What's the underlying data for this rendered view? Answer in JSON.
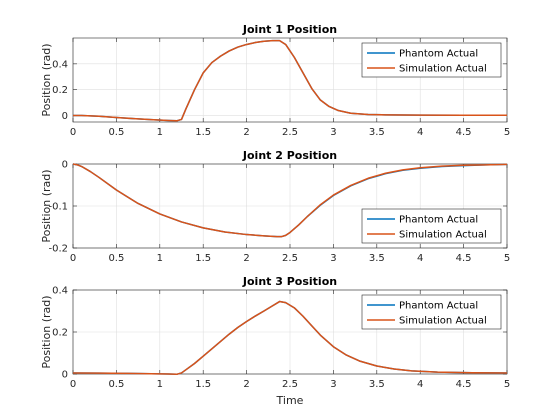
{
  "figure": {
    "background": "#ffffff"
  },
  "chart_data": [
    {
      "type": "line",
      "title": "Joint 1 Position",
      "xlabel": "",
      "ylabel": "Position (rad)",
      "xlim": [
        0,
        5
      ],
      "ylim": [
        -0.05,
        0.6
      ],
      "xticks": [
        0,
        0.5,
        1,
        1.5,
        2,
        2.5,
        3,
        3.5,
        4,
        4.5,
        5
      ],
      "xtick_labels": [
        "0",
        "0.5",
        "1",
        "1.5",
        "2",
        "2.5",
        "3",
        "3.5",
        "4",
        "4.5",
        "5"
      ],
      "yticks": [
        0,
        0.2,
        0.4
      ],
      "ytick_labels": [
        "0",
        "0.2",
        "0.4"
      ],
      "grid": true,
      "legend_position": "top-right",
      "series": [
        {
          "name": "Phantom Actual",
          "color": "#0072BD",
          "x": [
            0,
            0.1,
            0.3,
            0.5,
            0.7,
            0.9,
            1.1,
            1.2,
            1.25,
            1.3,
            1.4,
            1.5,
            1.6,
            1.7,
            1.8,
            1.9,
            2.0,
            2.1,
            2.2,
            2.3,
            2.38,
            2.45,
            2.55,
            2.65,
            2.75,
            2.85,
            2.95,
            3.05,
            3.2,
            3.4,
            3.6,
            3.8,
            4.0,
            4.5,
            5.0
          ],
          "y": [
            0.0,
            0.0,
            -0.006,
            -0.015,
            -0.024,
            -0.032,
            -0.038,
            -0.04,
            -0.03,
            0.05,
            0.2,
            0.33,
            0.41,
            0.46,
            0.5,
            0.53,
            0.55,
            0.565,
            0.575,
            0.58,
            0.58,
            0.55,
            0.45,
            0.33,
            0.21,
            0.12,
            0.07,
            0.04,
            0.018,
            0.008,
            0.005,
            0.004,
            0.003,
            0.002,
            0.002
          ]
        },
        {
          "name": "Simulation Actual",
          "color": "#D95319",
          "x": [
            0,
            0.1,
            0.3,
            0.5,
            0.7,
            0.9,
            1.1,
            1.2,
            1.25,
            1.3,
            1.4,
            1.5,
            1.6,
            1.7,
            1.8,
            1.9,
            2.0,
            2.1,
            2.2,
            2.3,
            2.38,
            2.45,
            2.55,
            2.65,
            2.75,
            2.85,
            2.95,
            3.05,
            3.2,
            3.4,
            3.6,
            3.8,
            4.0,
            4.5,
            5.0
          ],
          "y": [
            0.0,
            0.0,
            -0.006,
            -0.015,
            -0.024,
            -0.032,
            -0.038,
            -0.04,
            -0.03,
            0.05,
            0.2,
            0.33,
            0.41,
            0.46,
            0.5,
            0.53,
            0.55,
            0.565,
            0.575,
            0.58,
            0.58,
            0.55,
            0.45,
            0.33,
            0.21,
            0.12,
            0.07,
            0.04,
            0.018,
            0.008,
            0.005,
            0.004,
            0.003,
            0.002,
            0.002
          ]
        }
      ]
    },
    {
      "type": "line",
      "title": "Joint 2 Position",
      "xlabel": "",
      "ylabel": "Position (rad)",
      "xlim": [
        0,
        5
      ],
      "ylim": [
        -0.2,
        0
      ],
      "xticks": [
        0,
        0.5,
        1,
        1.5,
        2,
        2.5,
        3,
        3.5,
        4,
        4.5,
        5
      ],
      "xtick_labels": [
        "0",
        "0.5",
        "1",
        "1.5",
        "2",
        "2.5",
        "3",
        "3.5",
        "4",
        "4.5",
        "5"
      ],
      "yticks": [
        -0.2,
        -0.1,
        0
      ],
      "ytick_labels": [
        "-0.2",
        "-0.1",
        "0"
      ],
      "grid": true,
      "legend_position": "bottom-right",
      "series": [
        {
          "name": "Phantom Actual",
          "color": "#0072BD",
          "x": [
            0,
            0.05,
            0.1,
            0.2,
            0.3,
            0.5,
            0.75,
            1.0,
            1.25,
            1.5,
            1.75,
            2.0,
            2.2,
            2.35,
            2.4,
            2.45,
            2.5,
            2.6,
            2.7,
            2.85,
            3.0,
            3.2,
            3.4,
            3.6,
            3.8,
            4.0,
            4.25,
            4.5,
            4.75,
            5.0
          ],
          "y": [
            0.0,
            -0.002,
            -0.006,
            -0.018,
            -0.032,
            -0.062,
            -0.094,
            -0.119,
            -0.138,
            -0.152,
            -0.162,
            -0.168,
            -0.171,
            -0.173,
            -0.173,
            -0.17,
            -0.163,
            -0.145,
            -0.125,
            -0.098,
            -0.075,
            -0.052,
            -0.035,
            -0.023,
            -0.015,
            -0.01,
            -0.006,
            -0.004,
            -0.002,
            -0.001
          ]
        },
        {
          "name": "Simulation Actual",
          "color": "#D95319",
          "x": [
            0,
            0.05,
            0.1,
            0.2,
            0.3,
            0.5,
            0.75,
            1.0,
            1.25,
            1.5,
            1.75,
            2.0,
            2.2,
            2.35,
            2.4,
            2.45,
            2.5,
            2.6,
            2.7,
            2.85,
            3.0,
            3.2,
            3.4,
            3.6,
            3.8,
            4.0,
            4.25,
            4.5,
            4.75,
            5.0
          ],
          "y": [
            0.0,
            -0.002,
            -0.006,
            -0.018,
            -0.032,
            -0.062,
            -0.094,
            -0.119,
            -0.138,
            -0.152,
            -0.162,
            -0.168,
            -0.171,
            -0.173,
            -0.173,
            -0.17,
            -0.163,
            -0.145,
            -0.125,
            -0.097,
            -0.074,
            -0.051,
            -0.034,
            -0.022,
            -0.014,
            -0.009,
            -0.005,
            -0.003,
            -0.002,
            -0.001
          ]
        }
      ]
    },
    {
      "type": "line",
      "title": "Joint 3 Position",
      "xlabel": "Time",
      "ylabel": "Position (rad)",
      "xlim": [
        0,
        5
      ],
      "ylim": [
        0,
        0.4
      ],
      "xticks": [
        0,
        0.5,
        1,
        1.5,
        2,
        2.5,
        3,
        3.5,
        4,
        4.5,
        5
      ],
      "xtick_labels": [
        "0",
        "0.5",
        "1",
        "1.5",
        "2",
        "2.5",
        "3",
        "3.5",
        "4",
        "4.5",
        "5"
      ],
      "yticks": [
        0,
        0.2,
        0.4
      ],
      "ytick_labels": [
        "0",
        "0.2",
        "0.4"
      ],
      "grid": true,
      "legend_position": "top-right",
      "series": [
        {
          "name": "Phantom Actual",
          "color": "#0072BD",
          "x": [
            0,
            0.3,
            0.6,
            0.9,
            1.1,
            1.2,
            1.25,
            1.3,
            1.4,
            1.5,
            1.6,
            1.7,
            1.8,
            1.9,
            2.0,
            2.1,
            2.2,
            2.3,
            2.38,
            2.45,
            2.55,
            2.65,
            2.75,
            2.85,
            3.0,
            3.15,
            3.3,
            3.5,
            3.7,
            3.9,
            4.2,
            4.6,
            5.0
          ],
          "y": [
            0.005,
            0.004,
            0.003,
            0.001,
            0.0,
            -0.001,
            0.005,
            0.02,
            0.05,
            0.085,
            0.12,
            0.155,
            0.19,
            0.222,
            0.25,
            0.276,
            0.3,
            0.325,
            0.345,
            0.34,
            0.315,
            0.275,
            0.23,
            0.185,
            0.13,
            0.09,
            0.062,
            0.038,
            0.024,
            0.015,
            0.009,
            0.006,
            0.005
          ]
        },
        {
          "name": "Simulation Actual",
          "color": "#D95319",
          "x": [
            0,
            0.3,
            0.6,
            0.9,
            1.1,
            1.2,
            1.25,
            1.3,
            1.4,
            1.5,
            1.6,
            1.7,
            1.8,
            1.9,
            2.0,
            2.1,
            2.2,
            2.3,
            2.38,
            2.45,
            2.55,
            2.65,
            2.75,
            2.85,
            3.0,
            3.15,
            3.3,
            3.5,
            3.7,
            3.9,
            4.2,
            4.6,
            5.0
          ],
          "y": [
            0.005,
            0.004,
            0.003,
            0.001,
            0.0,
            -0.001,
            0.005,
            0.02,
            0.05,
            0.085,
            0.12,
            0.155,
            0.19,
            0.222,
            0.25,
            0.276,
            0.3,
            0.325,
            0.345,
            0.34,
            0.315,
            0.275,
            0.23,
            0.185,
            0.13,
            0.09,
            0.062,
            0.038,
            0.024,
            0.015,
            0.009,
            0.006,
            0.005
          ]
        }
      ]
    }
  ]
}
